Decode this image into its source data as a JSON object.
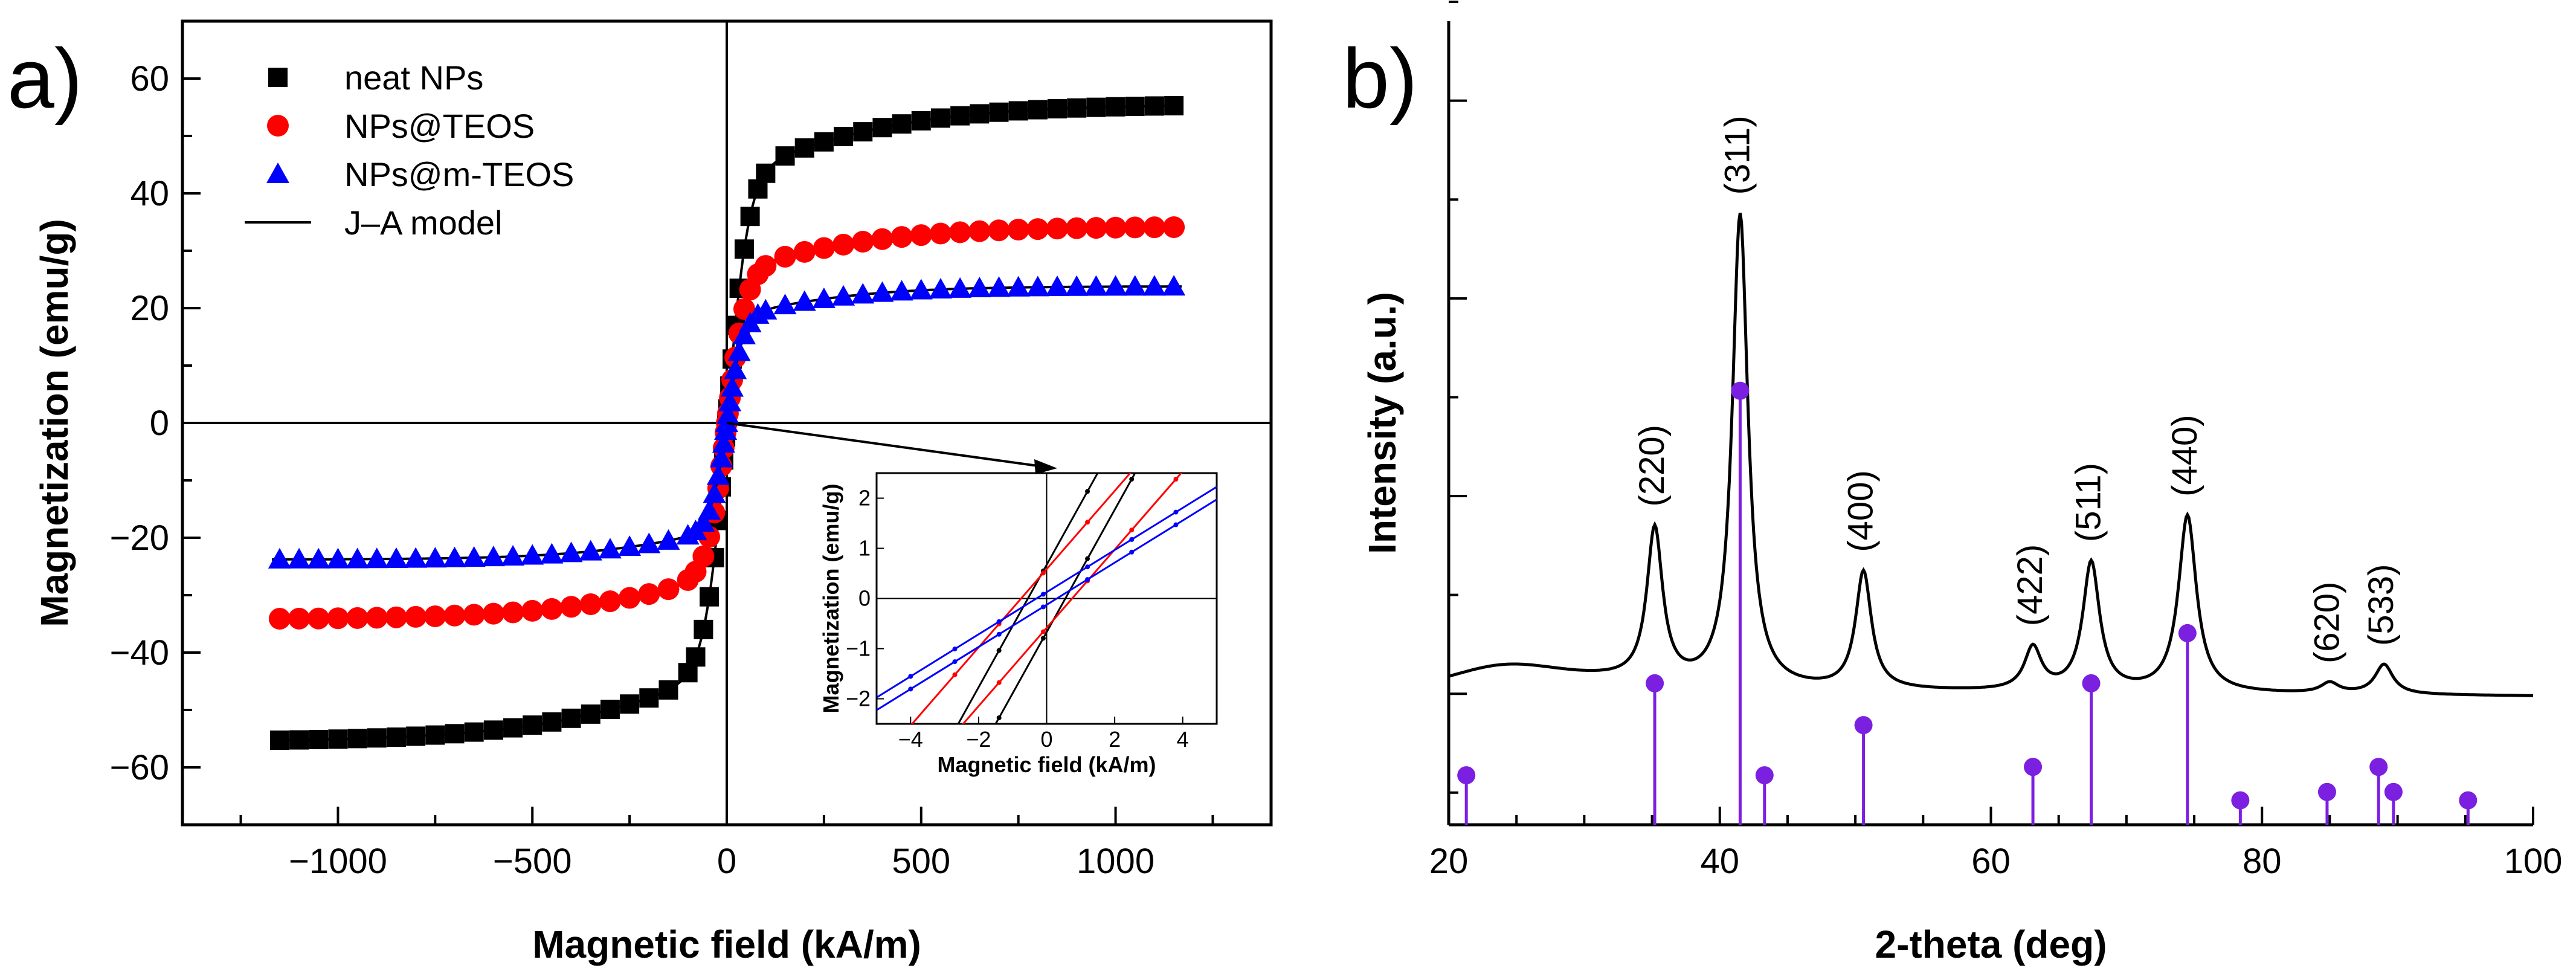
{
  "chart_data": [
    {
      "id": "a",
      "panel_label": "a)",
      "type": "scatter",
      "title": "",
      "xlabel": "Magnetic field (kA/m)",
      "ylabel": "Magnetization (emu/g)",
      "xlim": [
        -1400,
        1400
      ],
      "ylim": [
        -70,
        70
      ],
      "xticks": [
        -1000,
        -500,
        0,
        500,
        1000
      ],
      "xtick_labels": [
        "−1000",
        "−500",
        "0",
        "500",
        "1000"
      ],
      "yticks": [
        -60,
        -40,
        -20,
        0,
        20,
        40,
        60
      ],
      "ytick_labels": [
        "−60",
        "−40",
        "−20",
        "0",
        "20",
        "40",
        "60"
      ],
      "legend": [
        "neat NPs",
        "NPs@TEOS",
        "NPs@m-TEOS",
        "J–A model"
      ],
      "legend_position": "top-left",
      "series": [
        {
          "name": "neat NPs",
          "color": "#000000",
          "marker": "square",
          "ms": 55.5,
          "a": 55
        },
        {
          "name": "NPs@TEOS",
          "color": "#ff0000",
          "marker": "circle",
          "ms": 34.2,
          "a": 50
        },
        {
          "name": "NPs@m-TEOS",
          "color": "#0000ff",
          "marker": "triangle",
          "ms": 23.8,
          "a": 42
        },
        {
          "name": "J–A model",
          "color": "#000000",
          "marker": "line"
        }
      ],
      "inset": {
        "type": "line",
        "xlabel": "Magnetic field (kA/m)",
        "ylabel": "Magnetization (emu/g)",
        "xlim": [
          -5,
          5
        ],
        "ylim": [
          -2.5,
          2.5
        ],
        "xticks": [
          -4,
          -2,
          0,
          2,
          4
        ],
        "xtick_labels": [
          "−4",
          "−2",
          "0",
          "2",
          "4"
        ],
        "yticks": [
          -2,
          -1,
          0,
          1,
          2
        ],
        "ytick_labels": [
          "−2",
          "−1",
          "0",
          "1",
          "2"
        ],
        "branches": [
          {
            "series": "neat NPs",
            "color": "#000000",
            "slope": 1.22,
            "coercivity": 0.55
          },
          {
            "series": "NPs@TEOS",
            "color": "#ff0000",
            "slope": 0.78,
            "coercivity": 0.75
          },
          {
            "series": "NPs@m-TEOS",
            "color": "#0000ff",
            "slope": 0.42,
            "coercivity": 0.3
          }
        ]
      }
    },
    {
      "id": "b",
      "panel_label": "b)",
      "type": "line",
      "title": "",
      "xlabel": "2-theta (deg)",
      "ylabel": "Intensity (a.u.)",
      "xlim": [
        20,
        100
      ],
      "xticks": [
        20,
        40,
        60,
        80,
        100
      ],
      "xtick_labels": [
        "20",
        "40",
        "60",
        "80",
        "100"
      ],
      "ylim": [
        0,
        1
      ],
      "pattern": {
        "baseline": 0.17,
        "peaks": [
          {
            "label": "(220)",
            "x": 35.2,
            "height": 0.19,
            "width": 0.7
          },
          {
            "label": "(311)",
            "x": 41.5,
            "height": 0.59,
            "width": 0.7
          },
          {
            "label": "(400)",
            "x": 50.6,
            "height": 0.146,
            "width": 0.7
          },
          {
            "label": "(422)",
            "x": 63.1,
            "height": 0.053,
            "width": 0.75
          },
          {
            "label": "(511)",
            "x": 67.4,
            "height": 0.16,
            "width": 0.75
          },
          {
            "label": "(440)",
            "x": 74.5,
            "height": 0.22,
            "width": 0.8
          },
          {
            "label": "(620)",
            "x": 85.0,
            "height": 0.013,
            "width": 0.8
          },
          {
            "label": "(533)",
            "x": 89.0,
            "height": 0.037,
            "width": 0.8
          }
        ]
      },
      "reference_pattern": {
        "type": "stem",
        "color": "#7b1fe0",
        "x": [
          21.3,
          35.2,
          41.5,
          43.3,
          50.6,
          63.1,
          67.4,
          74.5,
          78.4,
          84.8,
          88.6,
          89.7,
          95.2
        ],
        "values": [
          8,
          30,
          100,
          8,
          20,
          10,
          30,
          42,
          2,
          4,
          10,
          4,
          2
        ]
      }
    }
  ]
}
